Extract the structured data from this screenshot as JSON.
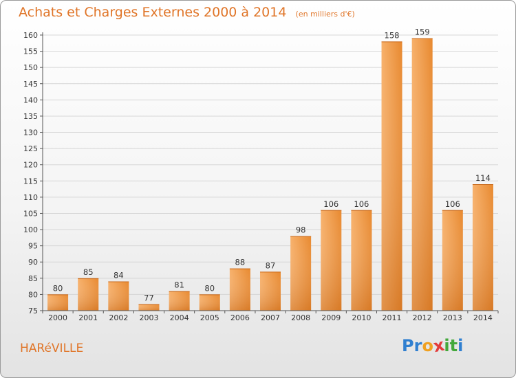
{
  "header": {
    "title": "Achats et Charges Externes 2000 à 2014",
    "subtitle": "(en milliers d'€)"
  },
  "town": "HARéVILLE",
  "brand": {
    "letters": [
      {
        "ch": "P",
        "color": "#2f7fd0"
      },
      {
        "ch": "r",
        "color": "#2f7fd0"
      },
      {
        "ch": "o",
        "color": "#f0a020"
      },
      {
        "ch": "x",
        "color": "#e23a3a"
      },
      {
        "ch": "i",
        "color": "#43a83b"
      },
      {
        "ch": "t",
        "color": "#43a83b"
      },
      {
        "ch": "i",
        "color": "#2f7fd0"
      }
    ]
  },
  "colors": {
    "title": "#e07528",
    "bar_light": "#f6a85a",
    "bar_dark": "#d9721e",
    "grid": "#d6d6d6",
    "axis": "#555555"
  },
  "chart_data": {
    "type": "bar",
    "title": "Achats et Charges Externes 2000 à 2014",
    "subtitle": "(en milliers d'€)",
    "categories": [
      "2000",
      "2001",
      "2002",
      "2003",
      "2004",
      "2005",
      "2006",
      "2007",
      "2008",
      "2009",
      "2010",
      "2011",
      "2012",
      "2013",
      "2014"
    ],
    "values": [
      80,
      85,
      84,
      77,
      81,
      80,
      88,
      87,
      98,
      106,
      106,
      158,
      159,
      106,
      114
    ],
    "ylim": [
      75,
      160
    ],
    "yticks": [
      75,
      80,
      85,
      90,
      95,
      100,
      105,
      110,
      115,
      120,
      125,
      130,
      135,
      140,
      145,
      150,
      155,
      160
    ],
    "grid": true,
    "data_labels": true
  }
}
